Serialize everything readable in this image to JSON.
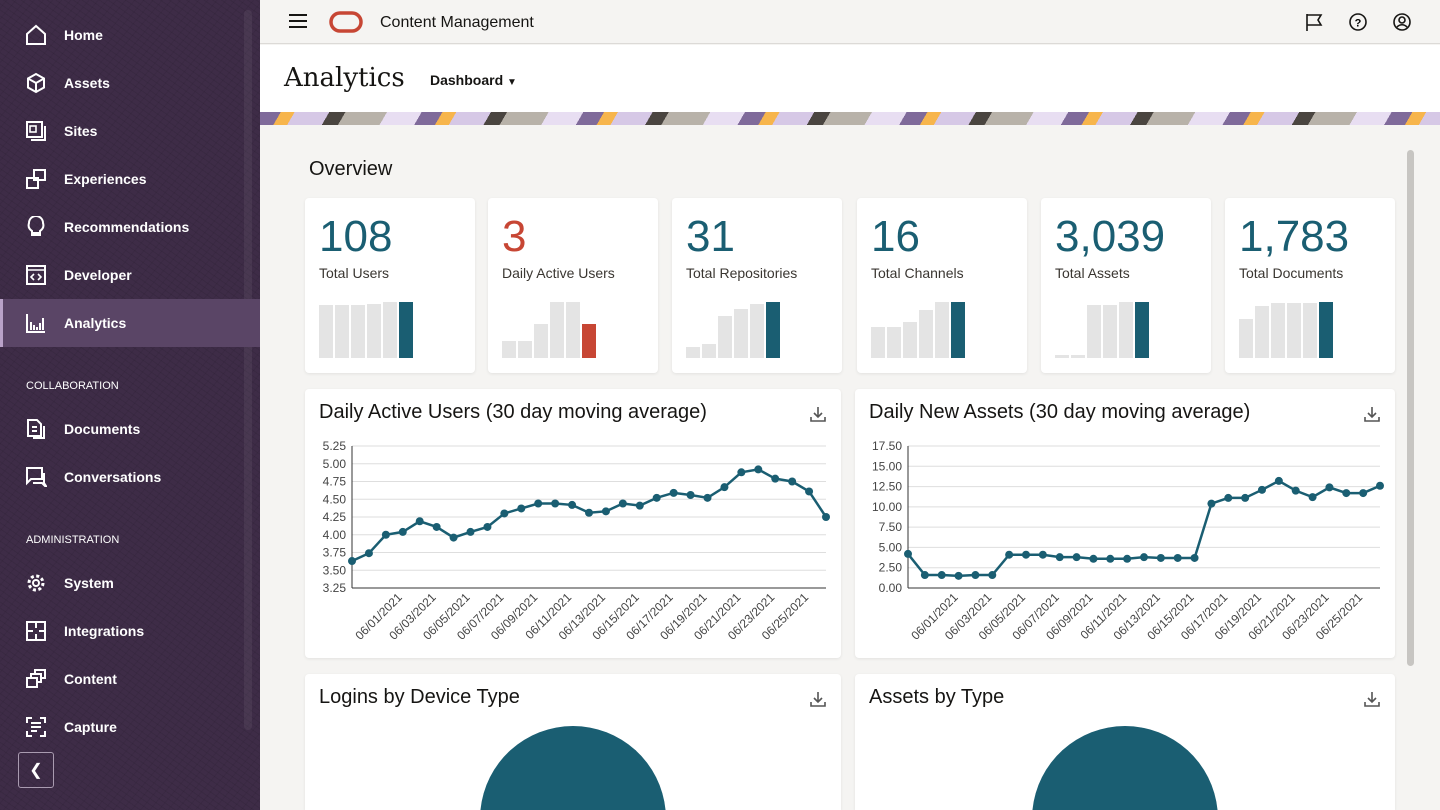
{
  "app": {
    "title": "Content Management",
    "brand_color": "#c74634"
  },
  "sidebar": {
    "items": [
      {
        "label": "Home",
        "icon": "home-icon"
      },
      {
        "label": "Assets",
        "icon": "cube-icon"
      },
      {
        "label": "Sites",
        "icon": "sites-icon"
      },
      {
        "label": "Experiences",
        "icon": "experiences-icon"
      },
      {
        "label": "Recommendations",
        "icon": "lightbulb-icon"
      },
      {
        "label": "Developer",
        "icon": "code-icon"
      },
      {
        "label": "Analytics",
        "icon": "analytics-icon",
        "active": true
      }
    ],
    "collaboration_heading": "COLLABORATION",
    "collaboration": [
      {
        "label": "Documents",
        "icon": "documents-icon"
      },
      {
        "label": "Conversations",
        "icon": "conversations-icon"
      }
    ],
    "administration_heading": "ADMINISTRATION",
    "administration": [
      {
        "label": "System",
        "icon": "gear-icon"
      },
      {
        "label": "Integrations",
        "icon": "puzzle-icon"
      },
      {
        "label": "Content",
        "icon": "content-icon"
      },
      {
        "label": "Capture",
        "icon": "capture-icon"
      }
    ],
    "collapse_icon": "chevron-left-icon"
  },
  "page": {
    "title": "Analytics",
    "view_selector": "Dashboard"
  },
  "overview": {
    "heading": "Overview",
    "kpis": [
      {
        "value": "108",
        "label": "Total Users",
        "color": "#1a5e72",
        "trend": [
          0.95,
          0.95,
          0.95,
          0.97,
          1,
          1
        ]
      },
      {
        "value": "3",
        "label": "Daily Active Users",
        "color": "#c74634",
        "trend": [
          0.3,
          0.3,
          0.6,
          1,
          1,
          0.6
        ]
      },
      {
        "value": "31",
        "label": "Total Repositories",
        "color": "#1a5e72",
        "trend": [
          0.2,
          0.25,
          0.75,
          0.88,
          0.97,
          1
        ]
      },
      {
        "value": "16",
        "label": "Total Channels",
        "color": "#1a5e72",
        "trend": [
          0.55,
          0.55,
          0.65,
          0.85,
          1,
          1
        ]
      },
      {
        "value": "3,039",
        "label": "Total Assets",
        "color": "#1a5e72",
        "trend": [
          0.05,
          0.05,
          0.95,
          0.95,
          1,
          1
        ]
      },
      {
        "value": "1,783",
        "label": "Total Documents",
        "color": "#1a5e72",
        "trend": [
          0.7,
          0.93,
          0.98,
          0.98,
          0.98,
          1
        ]
      }
    ]
  },
  "pie_cards": [
    {
      "title": "Logins by Device Type"
    },
    {
      "title": "Assets by Type"
    }
  ],
  "chart_data": [
    {
      "type": "line",
      "title": "Daily Active Users (30 day moving average)",
      "color": "#1a5e72",
      "grid": true,
      "x": [
        "05/29/2021",
        "05/30/2021",
        "05/31/2021",
        "06/01/2021",
        "06/02/2021",
        "06/03/2021",
        "06/04/2021",
        "06/05/2021",
        "06/06/2021",
        "06/07/2021",
        "06/08/2021",
        "06/09/2021",
        "06/10/2021",
        "06/11/2021",
        "06/12/2021",
        "06/13/2021",
        "06/14/2021",
        "06/15/2021",
        "06/16/2021",
        "06/17/2021",
        "06/18/2021",
        "06/19/2021",
        "06/20/2021",
        "06/21/2021",
        "06/22/2021",
        "06/23/2021",
        "06/24/2021",
        "06/25/2021",
        "06/26/2021"
      ],
      "values": [
        3.63,
        3.74,
        4.0,
        4.04,
        4.19,
        4.11,
        3.96,
        4.04,
        4.11,
        4.3,
        4.37,
        4.44,
        4.44,
        4.42,
        4.31,
        4.33,
        4.44,
        4.41,
        4.52,
        4.59,
        4.56,
        4.52,
        4.67,
        4.88,
        4.92,
        4.79,
        4.75,
        4.61,
        4.25
      ],
      "ylim": [
        3.25,
        5.25
      ],
      "yticks": [
        "5.25",
        "5.00",
        "4.75",
        "4.50",
        "4.25",
        "4.00",
        "3.75",
        "3.50",
        "3.25"
      ],
      "xticks": [
        "06/01/2021",
        "06/03/2021",
        "06/05/2021",
        "06/07/2021",
        "06/09/2021",
        "06/11/2021",
        "06/13/2021",
        "06/15/2021",
        "06/17/2021",
        "06/19/2021",
        "06/21/2021",
        "06/23/2021",
        "06/25/2021"
      ]
    },
    {
      "type": "line",
      "title": "Daily New Assets (30 day moving average)",
      "color": "#1a5e72",
      "grid": true,
      "x": [
        "05/29/2021",
        "05/30/2021",
        "05/31/2021",
        "06/01/2021",
        "06/02/2021",
        "06/03/2021",
        "06/04/2021",
        "06/05/2021",
        "06/06/2021",
        "06/07/2021",
        "06/08/2021",
        "06/09/2021",
        "06/10/2021",
        "06/11/2021",
        "06/12/2021",
        "06/13/2021",
        "06/14/2021",
        "06/15/2021",
        "06/16/2021",
        "06/17/2021",
        "06/18/2021",
        "06/19/2021",
        "06/20/2021",
        "06/21/2021",
        "06/22/2021",
        "06/23/2021",
        "06/24/2021",
        "06/25/2021",
        "06/26/2021"
      ],
      "values": [
        4.2,
        1.6,
        1.6,
        1.5,
        1.6,
        1.6,
        4.1,
        4.1,
        4.1,
        3.8,
        3.8,
        3.6,
        3.6,
        3.6,
        3.8,
        3.7,
        3.7,
        3.7,
        10.4,
        11.1,
        11.1,
        12.1,
        13.2,
        12.0,
        11.2,
        12.4,
        11.7,
        11.7,
        12.6
      ],
      "ylim": [
        0,
        17.5
      ],
      "yticks": [
        "17.50",
        "15.00",
        "12.50",
        "10.00",
        "7.50",
        "5.00",
        "2.50",
        "0.00"
      ],
      "xticks": [
        "06/01/2021",
        "06/03/2021",
        "06/05/2021",
        "06/07/2021",
        "06/09/2021",
        "06/11/2021",
        "06/13/2021",
        "06/15/2021",
        "06/17/2021",
        "06/19/2021",
        "06/21/2021",
        "06/23/2021",
        "06/25/2021"
      ]
    }
  ]
}
